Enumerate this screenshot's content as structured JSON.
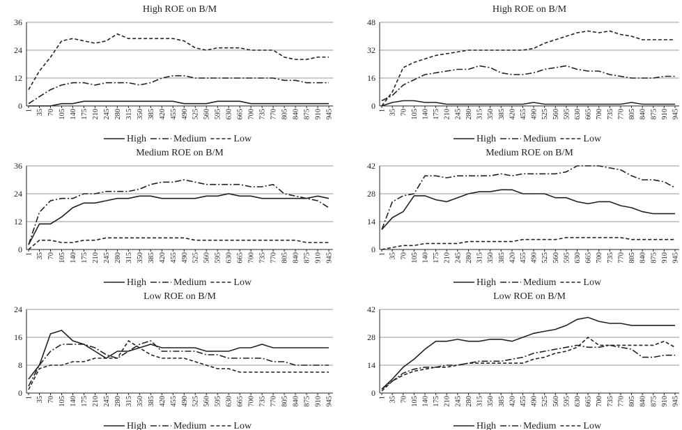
{
  "chart_data": [
    {
      "type": "line",
      "title": "High ROE on B/M",
      "x": [
        1,
        35,
        70,
        105,
        140,
        175,
        210,
        245,
        280,
        315,
        350,
        385,
        420,
        455,
        490,
        525,
        560,
        595,
        630,
        665,
        700,
        735,
        770,
        805,
        840,
        875,
        910,
        945
      ],
      "xlim": [
        1,
        945
      ],
      "xticks": [
        1,
        35,
        70,
        105,
        140,
        175,
        210,
        245,
        280,
        315,
        350,
        385,
        420,
        455,
        490,
        525,
        560,
        595,
        630,
        665,
        700,
        735,
        770,
        805,
        840,
        875,
        910,
        945
      ],
      "ylim": [
        0,
        36
      ],
      "yticks": [
        0,
        12,
        24,
        36
      ],
      "grid": true,
      "series": [
        {
          "name": "High",
          "color": "#231f20",
          "dash": "solid",
          "values": [
            0,
            0,
            0,
            1,
            1,
            2,
            2,
            2,
            2,
            2,
            2,
            2,
            2,
            2,
            1,
            1,
            1,
            2,
            2,
            2,
            1,
            1,
            1,
            1,
            1,
            1,
            1,
            1
          ]
        },
        {
          "name": "Medium",
          "color": "#231f20",
          "dash": "dashdot",
          "values": [
            1,
            4,
            7,
            9,
            10,
            10,
            9,
            10,
            10,
            10,
            9,
            10,
            12,
            13,
            13,
            12,
            12,
            12,
            12,
            12,
            12,
            12,
            12,
            11,
            11,
            10,
            10,
            10
          ]
        },
        {
          "name": "Low",
          "color": "#231f20",
          "dash": "dashed",
          "values": [
            7,
            15,
            21,
            28,
            29,
            28,
            27,
            28,
            31,
            29,
            29,
            29,
            29,
            29,
            28,
            25,
            24,
            25,
            25,
            25,
            24,
            24,
            24,
            21,
            20,
            20,
            21,
            21
          ]
        }
      ]
    },
    {
      "type": "line",
      "title": "High ROE on B/M",
      "x": [
        1,
        35,
        70,
        105,
        140,
        175,
        210,
        245,
        280,
        315,
        350,
        385,
        420,
        455,
        490,
        525,
        560,
        595,
        630,
        665,
        700,
        735,
        770,
        805,
        840,
        875,
        910,
        945
      ],
      "xlim": [
        1,
        945
      ],
      "xticks": [
        1,
        35,
        70,
        105,
        140,
        175,
        210,
        245,
        280,
        315,
        350,
        385,
        420,
        455,
        490,
        525,
        560,
        595,
        630,
        665,
        700,
        735,
        770,
        805,
        840,
        875,
        910,
        945
      ],
      "ylim": [
        0,
        48
      ],
      "yticks": [
        0,
        16,
        32,
        48
      ],
      "grid": true,
      "series": [
        {
          "name": "High",
          "color": "#231f20",
          "dash": "solid",
          "values": [
            0,
            2,
            3,
            3,
            2,
            2,
            1,
            1,
            1,
            1,
            1,
            1,
            1,
            1,
            2,
            1,
            1,
            1,
            1,
            1,
            1,
            1,
            1,
            2,
            1,
            1,
            1,
            1
          ]
        },
        {
          "name": "Medium",
          "color": "#231f20",
          "dash": "dashdot",
          "values": [
            3,
            6,
            12,
            15,
            18,
            19,
            20,
            21,
            21,
            23,
            22,
            19,
            18,
            18,
            19,
            21,
            22,
            23,
            21,
            20,
            20,
            18,
            17,
            16,
            16,
            16,
            17,
            17
          ]
        },
        {
          "name": "Low",
          "color": "#231f20",
          "dash": "dashed",
          "values": [
            0,
            8,
            22,
            25,
            27,
            29,
            30,
            31,
            32,
            32,
            32,
            32,
            32,
            32,
            33,
            36,
            38,
            40,
            42,
            43,
            42,
            43,
            41,
            40,
            38,
            38,
            38,
            38
          ]
        }
      ]
    },
    {
      "type": "line",
      "title": "Medium ROE on B/M",
      "x": [
        1,
        35,
        70,
        105,
        140,
        175,
        210,
        245,
        280,
        315,
        350,
        385,
        420,
        455,
        490,
        525,
        560,
        595,
        630,
        665,
        700,
        735,
        770,
        805,
        840,
        875,
        910,
        945
      ],
      "xlim": [
        1,
        945
      ],
      "xticks": [
        1,
        35,
        70,
        105,
        140,
        175,
        210,
        245,
        280,
        315,
        350,
        385,
        420,
        455,
        490,
        525,
        560,
        595,
        630,
        665,
        700,
        735,
        770,
        805,
        840,
        875,
        910,
        945
      ],
      "ylim": [
        0,
        36
      ],
      "yticks": [
        0,
        12,
        24,
        36
      ],
      "grid": true,
      "series": [
        {
          "name": "High",
          "color": "#231f20",
          "dash": "solid",
          "values": [
            2,
            11,
            11,
            14,
            18,
            20,
            20,
            21,
            22,
            22,
            23,
            23,
            22,
            22,
            22,
            22,
            23,
            23,
            24,
            23,
            23,
            22,
            22,
            22,
            22,
            22,
            23,
            22
          ]
        },
        {
          "name": "Medium",
          "color": "#231f20",
          "dash": "dashdot",
          "values": [
            2,
            16,
            21,
            22,
            22,
            24,
            24,
            25,
            25,
            25,
            26,
            28,
            29,
            29,
            30,
            29,
            28,
            28,
            28,
            28,
            27,
            27,
            28,
            24,
            23,
            22,
            21,
            18
          ]
        },
        {
          "name": "Low",
          "color": "#231f20",
          "dash": "dashed",
          "values": [
            0,
            4,
            4,
            3,
            3,
            4,
            4,
            5,
            5,
            5,
            5,
            5,
            5,
            5,
            5,
            4,
            4,
            4,
            4,
            4,
            4,
            4,
            4,
            4,
            4,
            3,
            3,
            3
          ]
        }
      ]
    },
    {
      "type": "line",
      "title": "Medium ROE on B/M",
      "x": [
        1,
        35,
        70,
        105,
        140,
        175,
        210,
        245,
        280,
        315,
        350,
        385,
        420,
        455,
        490,
        525,
        560,
        595,
        630,
        665,
        700,
        735,
        770,
        805,
        840,
        875,
        910,
        945
      ],
      "xlim": [
        1,
        945
      ],
      "xticks": [
        1,
        35,
        70,
        105,
        140,
        175,
        210,
        245,
        280,
        315,
        350,
        385,
        420,
        455,
        490,
        525,
        560,
        595,
        630,
        665,
        700,
        735,
        770,
        805,
        840,
        875,
        910,
        945
      ],
      "ylim": [
        0,
        42
      ],
      "yticks": [
        0,
        14,
        28,
        42
      ],
      "grid": true,
      "series": [
        {
          "name": "High",
          "color": "#231f20",
          "dash": "solid",
          "values": [
            10,
            16,
            19,
            27,
            27,
            25,
            24,
            26,
            28,
            29,
            29,
            30,
            30,
            28,
            28,
            28,
            26,
            26,
            24,
            23,
            24,
            24,
            22,
            21,
            19,
            18,
            18,
            18
          ]
        },
        {
          "name": "Medium",
          "color": "#231f20",
          "dash": "dashdot",
          "values": [
            10,
            24,
            27,
            28,
            37,
            37,
            36,
            37,
            37,
            37,
            37,
            38,
            37,
            38,
            38,
            38,
            38,
            39,
            42,
            42,
            42,
            41,
            40,
            37,
            35,
            35,
            34,
            31
          ]
        },
        {
          "name": "Low",
          "color": "#231f20",
          "dash": "dashed",
          "values": [
            0,
            1,
            2,
            2,
            3,
            3,
            3,
            3,
            4,
            4,
            4,
            4,
            4,
            5,
            5,
            5,
            5,
            6,
            6,
            6,
            6,
            6,
            6,
            5,
            5,
            5,
            5,
            5
          ]
        }
      ]
    },
    {
      "type": "line",
      "title": "Low ROE on B/M",
      "x": [
        1,
        35,
        70,
        105,
        140,
        175,
        210,
        245,
        280,
        315,
        350,
        385,
        420,
        455,
        490,
        525,
        560,
        595,
        630,
        665,
        700,
        735,
        770,
        805,
        840,
        875,
        910,
        945
      ],
      "xlim": [
        1,
        945
      ],
      "xticks": [
        1,
        35,
        70,
        105,
        140,
        175,
        210,
        245,
        280,
        315,
        350,
        385,
        420,
        455,
        490,
        525,
        560,
        595,
        630,
        665,
        700,
        735,
        770,
        805,
        840,
        875,
        910,
        945
      ],
      "ylim": [
        0,
        24
      ],
      "yticks": [
        0,
        8,
        16,
        24
      ],
      "grid": true,
      "series": [
        {
          "name": "High",
          "color": "#231f20",
          "dash": "solid",
          "values": [
            4,
            8,
            17,
            18,
            15,
            14,
            12,
            10,
            12,
            12,
            13,
            14,
            13,
            13,
            13,
            13,
            12,
            12,
            12,
            13,
            13,
            14,
            13,
            13,
            13,
            13,
            13,
            13
          ]
        },
        {
          "name": "Medium",
          "color": "#231f20",
          "dash": "dashdot",
          "values": [
            2,
            8,
            12,
            14,
            14,
            14,
            13,
            11,
            10,
            12,
            14,
            15,
            12,
            12,
            12,
            12,
            11,
            11,
            10,
            10,
            10,
            10,
            9,
            9,
            8,
            8,
            8,
            8
          ]
        },
        {
          "name": "Low",
          "color": "#231f20",
          "dash": "dashed",
          "values": [
            1,
            7,
            8,
            8,
            9,
            9,
            10,
            10,
            10,
            15,
            13,
            11,
            10,
            10,
            10,
            9,
            8,
            7,
            7,
            6,
            6,
            6,
            6,
            6,
            6,
            6,
            6,
            6
          ]
        }
      ]
    },
    {
      "type": "line",
      "title": "Low ROE on B/M",
      "x": [
        1,
        35,
        70,
        105,
        140,
        175,
        210,
        245,
        280,
        315,
        350,
        385,
        420,
        455,
        490,
        525,
        560,
        595,
        630,
        665,
        700,
        735,
        770,
        805,
        840,
        875,
        910,
        945
      ],
      "xlim": [
        1,
        945
      ],
      "xticks": [
        1,
        35,
        70,
        105,
        140,
        175,
        210,
        245,
        280,
        315,
        350,
        385,
        420,
        455,
        490,
        525,
        560,
        595,
        630,
        665,
        700,
        735,
        770,
        805,
        840,
        875,
        910,
        945
      ],
      "ylim": [
        0,
        42
      ],
      "yticks": [
        0,
        14,
        28,
        42
      ],
      "grid": true,
      "series": [
        {
          "name": "High",
          "color": "#231f20",
          "dash": "solid",
          "values": [
            2,
            7,
            13,
            17,
            22,
            26,
            26,
            27,
            26,
            26,
            27,
            27,
            26,
            28,
            30,
            31,
            32,
            34,
            37,
            38,
            36,
            35,
            35,
            34,
            34,
            34,
            34,
            34
          ]
        },
        {
          "name": "Medium",
          "color": "#231f20",
          "dash": "dashdot",
          "values": [
            2,
            6,
            10,
            12,
            13,
            13,
            14,
            14,
            15,
            16,
            16,
            16,
            17,
            18,
            20,
            21,
            22,
            23,
            24,
            23,
            23,
            24,
            23,
            22,
            18,
            18,
            19,
            19
          ]
        },
        {
          "name": "Low",
          "color": "#231f20",
          "dash": "dashed",
          "values": [
            1,
            6,
            9,
            11,
            12,
            13,
            13,
            14,
            15,
            15,
            15,
            15,
            15,
            15,
            17,
            18,
            20,
            21,
            23,
            28,
            24,
            24,
            24,
            24,
            24,
            24,
            26,
            23
          ]
        }
      ]
    }
  ]
}
